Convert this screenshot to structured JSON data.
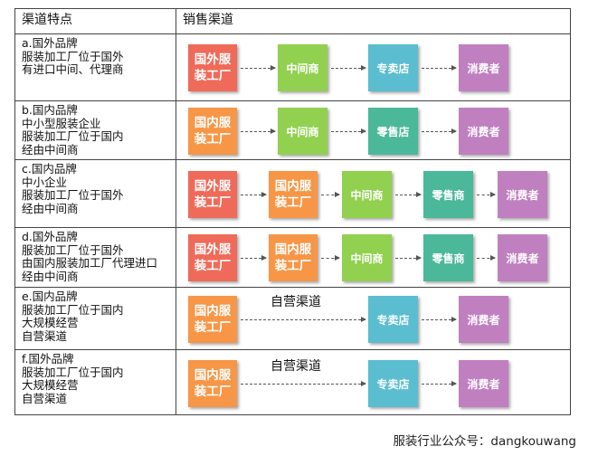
{
  "header": {
    "col1": "渠道特点",
    "col2": "销售渠道"
  },
  "colors": {
    "foreign_factory": "#f06a5a",
    "domestic_factory": "#f79646",
    "middleman": "#92d050",
    "retailer": "#4bb89a",
    "store": "#5bbdd0",
    "consumer": "#c080c0"
  },
  "rows": [
    {
      "desc": [
        "a.国外品牌",
        "服装加工厂位于国外",
        "有进口中间、代理商"
      ],
      "chain": [
        "国外服装工厂",
        "中间商",
        "专卖店",
        "消费者"
      ]
    },
    {
      "desc": [
        "b.国内品牌",
        "中小型服装企业",
        "服装加工厂位于国内",
        "经由中间商"
      ],
      "chain": [
        "国内服装工厂",
        "中间商",
        "零售店",
        "消费者"
      ]
    },
    {
      "desc": [
        "c.国内品牌",
        "中小企业",
        "服装加工厂位于国外",
        "经由中间商"
      ],
      "chain": [
        "国外服装工厂",
        "国内服装工厂",
        "中间商",
        "零售商",
        "消费者"
      ]
    },
    {
      "desc": [
        "d.国外品牌",
        "服装加工厂位于国外",
        "由国内服装加工厂代理进口",
        "经由中间商"
      ],
      "chain": [
        "国外服装工厂",
        "国内服装工厂",
        "中间商",
        "零售商",
        "消费者"
      ]
    },
    {
      "desc": [
        "e.国内品牌",
        "服装加工厂位于国内",
        "大规模经营",
        "自营渠道"
      ],
      "chain": [
        "国内服装工厂",
        "专卖店",
        "消费者"
      ],
      "channel_label": "自营渠道"
    },
    {
      "desc": [
        "f.国外品牌",
        "服装加工厂位于国内",
        "大规模经营",
        "自营渠道"
      ],
      "chain": [
        "国内服装工厂",
        "专卖店",
        "消费者"
      ],
      "channel_label": "自营渠道"
    }
  ],
  "footer": "服装行业公众号：dangkouwang"
}
